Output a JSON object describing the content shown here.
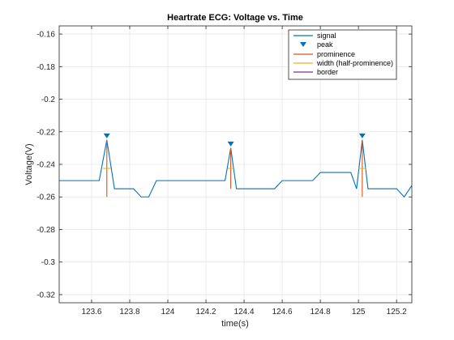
{
  "chart_data": {
    "type": "line",
    "title": "Heartrate ECG: Voltage vs. Time",
    "xlabel": "time(s)",
    "ylabel": "Voltage(V)",
    "xlim": [
      123.43,
      125.28
    ],
    "ylim": [
      -0.325,
      -0.155
    ],
    "xticks": [
      123.6,
      123.8,
      124,
      124.2,
      124.4,
      124.6,
      124.8,
      125,
      125.2
    ],
    "xtick_labels": [
      "123.6",
      "123.8",
      "124",
      "124.2",
      "124.4",
      "124.6",
      "124.8",
      "125",
      "125.2"
    ],
    "yticks": [
      -0.16,
      -0.18,
      -0.2,
      -0.22,
      -0.24,
      -0.26,
      -0.28,
      -0.3,
      -0.32
    ],
    "ytick_labels": [
      "-0.16",
      "-0.18",
      "-0.2",
      "-0.22",
      "-0.24",
      "-0.26",
      "-0.28",
      "-0.3",
      "-0.32"
    ],
    "grid": true,
    "legend_position": "top-right",
    "series": [
      {
        "name": "signal",
        "color": "#0072BD",
        "x": [
          123.43,
          123.64,
          123.68,
          123.72,
          123.82,
          123.86,
          123.9,
          123.94,
          124.3,
          124.33,
          124.36,
          124.56,
          124.6,
          124.76,
          124.8,
          124.96,
          124.99,
          125.02,
          125.05,
          125.2,
          125.24,
          125.28
        ],
        "y": [
          -0.25,
          -0.25,
          -0.225,
          -0.255,
          -0.255,
          -0.26,
          -0.26,
          -0.25,
          -0.25,
          -0.23,
          -0.255,
          -0.255,
          -0.25,
          -0.25,
          -0.245,
          -0.245,
          -0.255,
          -0.225,
          -0.255,
          -0.255,
          -0.26,
          -0.253
        ]
      }
    ],
    "peaks": {
      "name": "peak",
      "color": "#0072BD",
      "x": [
        123.68,
        124.33,
        125.02
      ],
      "y": [
        -0.225,
        -0.23,
        -0.225
      ]
    },
    "prominence": {
      "name": "prominence",
      "color": "#D95319",
      "segments": [
        {
          "x": 123.68,
          "y1": -0.225,
          "y2": -0.26
        },
        {
          "x": 124.33,
          "y1": -0.23,
          "y2": -0.255
        },
        {
          "x": 125.02,
          "y1": -0.225,
          "y2": -0.26
        }
      ]
    },
    "width": {
      "name": "width (half-prominence)",
      "color": "#EDB120",
      "segments": [
        {
          "x1": 123.66,
          "x2": 123.7,
          "y": -0.2425
        },
        {
          "x1": 124.315,
          "x2": 124.345,
          "y": -0.2425
        },
        {
          "x1": 125.0,
          "x2": 125.04,
          "y": -0.2425
        }
      ]
    },
    "border": {
      "name": "border",
      "color": "#7E2F8E"
    },
    "legend_entries": [
      "signal",
      "peak",
      "prominence",
      "width (half-prominence)",
      "border"
    ]
  }
}
